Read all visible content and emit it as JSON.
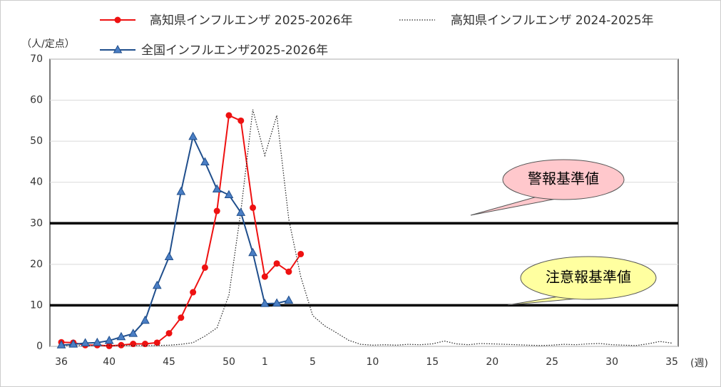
{
  "chart_data": {
    "type": "line",
    "y_unit": "（人/定点）",
    "x_unit": "(週)",
    "categories": [
      "36",
      null,
      null,
      null,
      "40",
      null,
      null,
      null,
      null,
      "45",
      null,
      null,
      null,
      null,
      "50",
      null,
      null,
      "1",
      null,
      null,
      null,
      "5",
      null,
      null,
      null,
      null,
      "10",
      null,
      null,
      null,
      null,
      "15",
      null,
      null,
      null,
      null,
      "20",
      null,
      null,
      null,
      null,
      "25",
      null,
      null,
      null,
      null,
      "30",
      null,
      null,
      null,
      null,
      "35"
    ],
    "ylim": [
      0,
      70
    ],
    "yticks": [
      0,
      10,
      20,
      30,
      40,
      50,
      60,
      70
    ],
    "grid": true,
    "series": [
      {
        "name": "高知県インフルエンザ 2025-2026年",
        "color": "#ee1111",
        "style": "solid",
        "marker": "circle",
        "values": [
          1.0,
          0.9,
          0.3,
          0.3,
          0.1,
          0.3,
          0.6,
          0.6,
          0.9,
          3.2,
          7.0,
          13.2,
          19.2,
          33.0,
          56.3,
          55.0,
          33.8,
          17.0,
          20.2,
          18.2,
          22.5,
          null,
          null,
          null,
          null,
          null,
          null,
          null,
          null,
          null,
          null,
          null,
          null,
          null,
          null,
          null,
          null,
          null,
          null,
          null,
          null,
          null,
          null,
          null,
          null,
          null,
          null,
          null,
          null,
          null,
          null,
          null
        ]
      },
      {
        "name": "高知県インフルエンザ 2024-2025年",
        "color": "#222222",
        "style": "dotted",
        "values": [
          0.2,
          0.2,
          0.2,
          0.2,
          0.2,
          0.2,
          0.2,
          0.2,
          0.2,
          0.3,
          0.5,
          0.9,
          2.5,
          4.5,
          12.5,
          33,
          57.7,
          46.5,
          56.3,
          31,
          17,
          7.5,
          5,
          3.3,
          1.5,
          0.5,
          0.3,
          0.4,
          0.3,
          0.5,
          0.4,
          0.6,
          1.3,
          0.6,
          0.4,
          0.7,
          0.6,
          0.5,
          0.4,
          0.3,
          0.2,
          0.3,
          0.5,
          0.4,
          0.6,
          0.7,
          0.4,
          0.3,
          0.2,
          0.6,
          1.2,
          0.8
        ]
      },
      {
        "name": "全国インフルエンザ2025-2026年",
        "color": "#1f4e8c",
        "style": "solid",
        "marker": "triangle",
        "values": [
          0.3,
          0.5,
          0.8,
          0.9,
          1.4,
          2.3,
          3.1,
          6.3,
          14.8,
          21.8,
          37.7,
          51.1,
          44.9,
          38.3,
          36.9,
          32.6,
          22.8,
          10.4,
          10.5,
          11.2,
          null,
          null,
          null,
          null,
          null,
          null,
          null,
          null,
          null,
          null,
          null,
          null,
          null,
          null,
          null,
          null,
          null,
          null,
          null,
          null,
          null,
          null,
          null,
          null,
          null,
          null,
          null,
          null,
          null,
          null,
          null,
          null
        ]
      }
    ],
    "reference_lines": [
      {
        "label": "警報基準値",
        "value": 30,
        "color": "#ffc8cc"
      },
      {
        "label": "注意報基準値",
        "value": 10,
        "color": "#ffffa0"
      }
    ]
  }
}
